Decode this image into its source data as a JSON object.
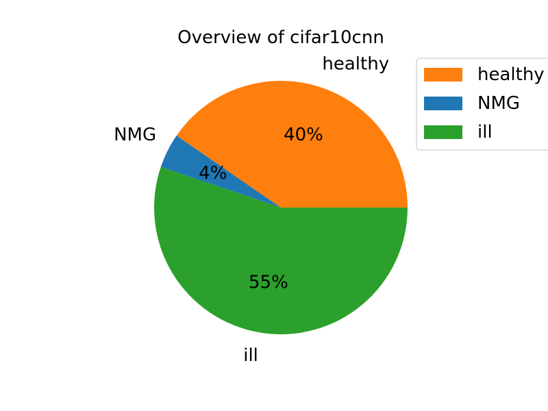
{
  "chart_data": {
    "type": "pie",
    "title": "Overview of cifar10cnn",
    "start_angle_deg": 0,
    "direction": "counterclockwise",
    "slices": [
      {
        "label": "healthy",
        "value": 40.4,
        "pct_label": "40%",
        "color": "#ff7f0e"
      },
      {
        "label": "NMG",
        "value": 4.4,
        "pct_label": "4%",
        "color": "#1f77b4"
      },
      {
        "label": "ill",
        "value": 55.2,
        "pct_label": "55%",
        "color": "#2ca02c"
      }
    ],
    "legend": {
      "placement": "top-right",
      "entries": [
        {
          "label": "healthy",
          "color": "#ff7f0e"
        },
        {
          "label": "NMG",
          "color": "#1f77b4"
        },
        {
          "label": "ill",
          "color": "#2ca02c"
        }
      ]
    }
  }
}
